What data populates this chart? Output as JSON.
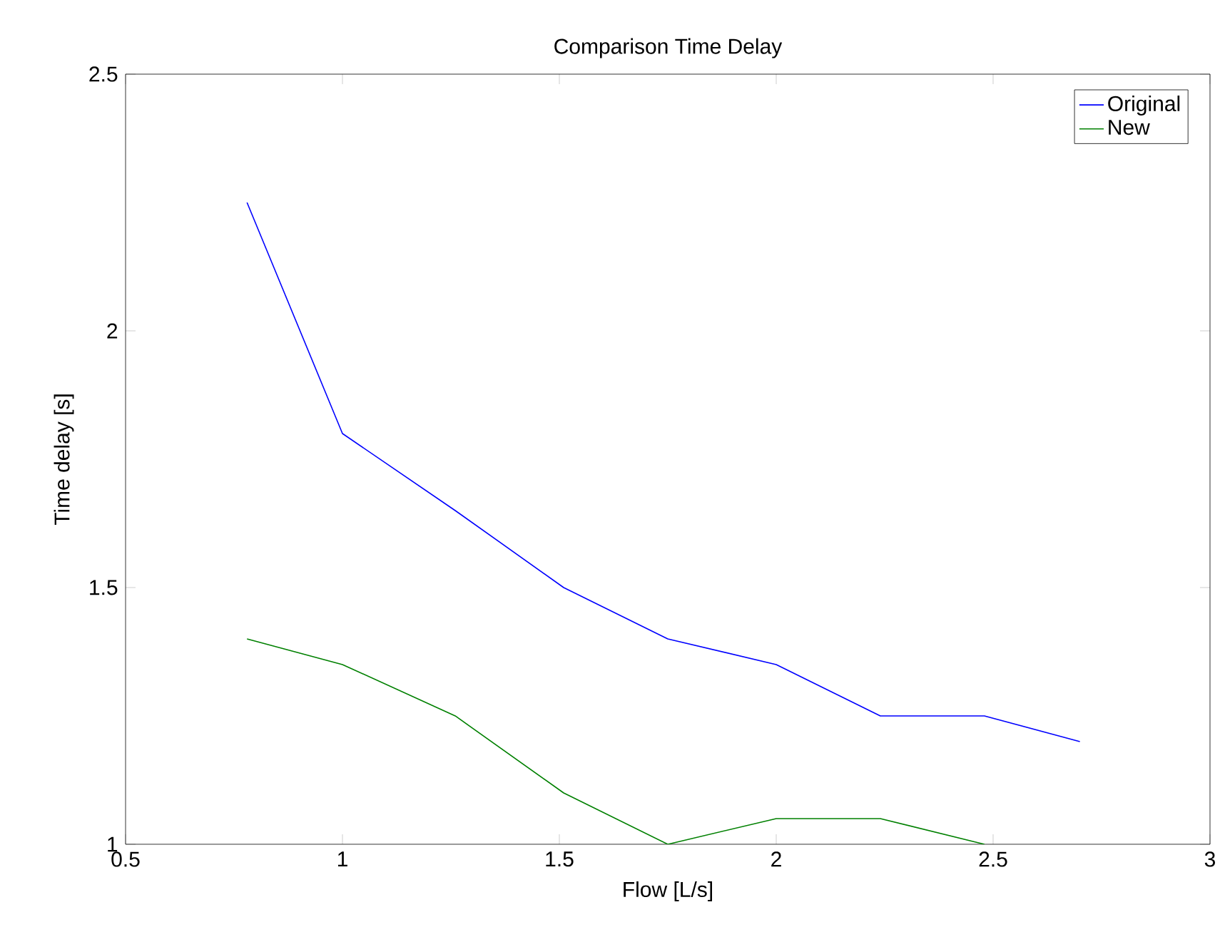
{
  "chart_data": {
    "type": "line",
    "title": "Comparison Time Delay",
    "xlabel": "Flow [L/s]",
    "ylabel": "Time delay [s]",
    "xlim": [
      0.5,
      3
    ],
    "ylim": [
      1,
      2.5
    ],
    "xticks": [
      0.5,
      1,
      1.5,
      2,
      2.5,
      3
    ],
    "yticks": [
      1,
      1.5,
      2,
      2.5
    ],
    "grid": false,
    "legend": "top right",
    "marker": "none",
    "line_style": "solid",
    "series": [
      {
        "name": "Original",
        "color": "#0000ff",
        "x": [
          0.78,
          1.0,
          1.26,
          1.51,
          1.75,
          2.0,
          2.24,
          2.48,
          2.7
        ],
        "values": [
          2.25,
          1.8,
          1.65,
          1.5,
          1.4,
          1.35,
          1.25,
          1.25,
          1.2
        ]
      },
      {
        "name": "New",
        "color": "#008000",
        "x": [
          0.78,
          1.0,
          1.26,
          1.51,
          1.75,
          2.0,
          2.24,
          2.48
        ],
        "values": [
          1.4,
          1.35,
          1.25,
          1.1,
          1.0,
          1.05,
          1.05,
          1.0
        ]
      }
    ]
  }
}
